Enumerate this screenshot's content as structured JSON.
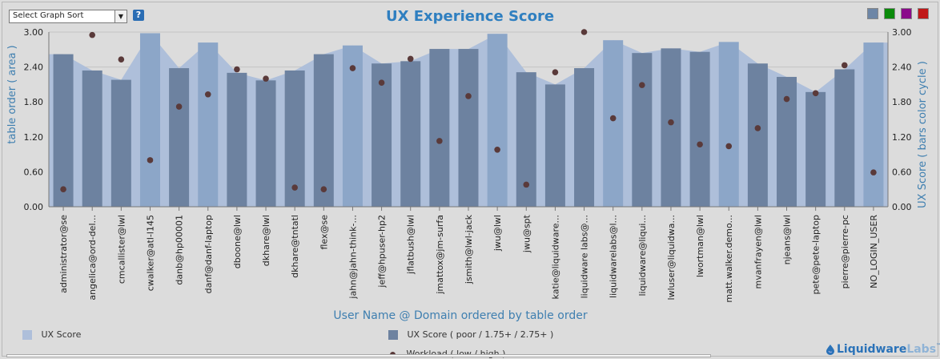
{
  "controls": {
    "sort_label": "Select Graph Sort",
    "help_label": "?",
    "palette": [
      "#6d86a6",
      "#0a8a0a",
      "#8a0a8a",
      "#c01818"
    ]
  },
  "chart_data": {
    "type": "bar",
    "title": "UX Experience Score",
    "xlabel": "User Name @ Domain ordered by table order",
    "ylabel_left": "table order   ( area )",
    "ylabel_right": "UX Score   ( bars color cycle )",
    "ylim": [
      0,
      3
    ],
    "yticks": [
      "0.00",
      "0.60",
      "1.20",
      "1.80",
      "2.40",
      "3.00"
    ],
    "grid": "horizontal",
    "legend_position": "bottom",
    "categories": [
      "administrator@se",
      "angelica@ord-del...",
      "cmcallister@lwl",
      "cwalker@atl-l145",
      "danb@hp00001",
      "danf@danf-laptop",
      "dboone@lwl",
      "dkhare@lwl",
      "dkhare@tntatl",
      "flex@se",
      "jahn@jahn-think-...",
      "jeff@hpuser-hp2",
      "jflatbush@lwl",
      "jmattox@jm-surfa",
      "jsmith@lwl-jack",
      "jwu@lwl",
      "jwu@spt",
      "katie@liquidware...",
      "liquidware labs@...",
      "liquidwarelabs@l...",
      "liquidware@liqui...",
      "lwluser@liquidwa...",
      "lwortman@lwl",
      "matt.walker.demo...",
      "mvanfrayen@lwl",
      "njeans@lwl",
      "pete@pete-laptop",
      "pierre@pierre-pc",
      "NO_LOGIN_USER"
    ],
    "series": [
      {
        "name": "UX Score",
        "type": "area",
        "color": "#aebfda",
        "values": [
          2.62,
          2.34,
          2.18,
          2.98,
          2.38,
          2.82,
          2.3,
          2.17,
          2.34,
          2.62,
          2.77,
          2.46,
          2.5,
          2.71,
          2.71,
          2.97,
          2.31,
          2.1,
          2.38,
          2.86,
          2.64,
          2.72,
          2.66,
          2.83,
          2.46,
          2.23,
          1.97,
          2.36,
          2.82
        ]
      },
      {
        "name": "UX Score  ( poor / 1.75+ / 2.75+ )",
        "type": "bar",
        "values": [
          2.62,
          2.34,
          2.18,
          2.98,
          2.38,
          2.82,
          2.3,
          2.17,
          2.34,
          2.62,
          2.77,
          2.46,
          2.5,
          2.71,
          2.71,
          2.97,
          2.31,
          2.1,
          2.38,
          2.86,
          2.64,
          2.72,
          2.66,
          2.83,
          2.46,
          2.23,
          1.97,
          2.36,
          2.82
        ],
        "colors": [
          "#6d82a0",
          "#6d82a0",
          "#6d82a0",
          "#8ca6c8",
          "#6d82a0",
          "#8ca6c8",
          "#6d82a0",
          "#6d82a0",
          "#6d82a0",
          "#6d82a0",
          "#8ca6c8",
          "#6d82a0",
          "#6d82a0",
          "#6d82a0",
          "#6d82a0",
          "#8ca6c8",
          "#6d82a0",
          "#6d82a0",
          "#6d82a0",
          "#8ca6c8",
          "#6d82a0",
          "#6d82a0",
          "#6d82a0",
          "#8ca6c8",
          "#6d82a0",
          "#6d82a0",
          "#6d82a0",
          "#6d82a0",
          "#8ca6c8"
        ]
      },
      {
        "name": "Workload  ( low / high )",
        "type": "scatter",
        "color": "#5a3a3a",
        "values": [
          0.3,
          2.95,
          2.53,
          0.8,
          1.72,
          1.93,
          2.36,
          2.2,
          0.33,
          0.3,
          2.38,
          2.13,
          2.54,
          1.13,
          1.9,
          0.98,
          0.38,
          2.31,
          3.0,
          1.52,
          2.09,
          1.45,
          1.07,
          1.04,
          1.35,
          1.85,
          1.95,
          2.43,
          0.59
        ]
      }
    ]
  },
  "legend": [
    {
      "label": "UX Score"
    },
    {
      "label": "UX Score  ( poor / 1.75+ / 2.75+ )"
    },
    {
      "label": "Workload  ( low / high )"
    }
  ],
  "brand": {
    "name_part1": "Liquidware",
    "name_part2": "Labs",
    "tm": "™"
  }
}
